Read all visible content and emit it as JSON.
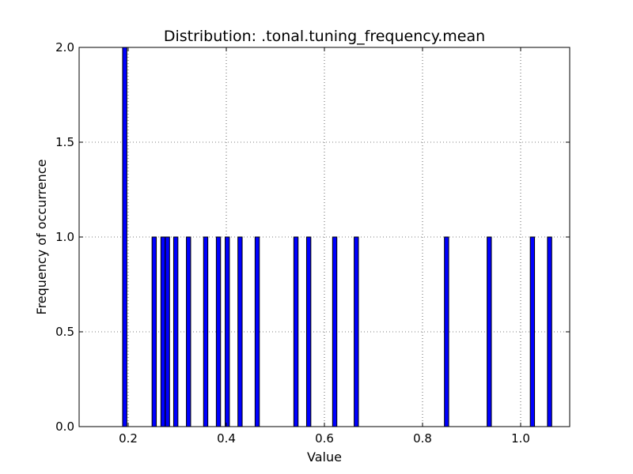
{
  "chart_data": {
    "type": "bar",
    "title": "Distribution: .tonal.tuning_frequency.mean",
    "xlabel": "Value",
    "ylabel": "Frequency of occurrence",
    "xlim": [
      0.1,
      1.1
    ],
    "ylim": [
      0.0,
      2.0
    ],
    "xticks": [
      0.2,
      0.4,
      0.6,
      0.8,
      1.0
    ],
    "xtick_labels": [
      "0.2",
      "0.4",
      "0.6",
      "0.8",
      "1.0"
    ],
    "yticks": [
      0.0,
      0.5,
      1.0,
      1.5,
      2.0
    ],
    "ytick_labels": [
      "0.0",
      "0.5",
      "1.0",
      "1.5",
      "2.0"
    ],
    "grid": true,
    "bar_width": 0.0087,
    "bar_color": "#0000ff",
    "bar_edge_color": "#000000",
    "bins": [
      {
        "x": 0.193,
        "count": 2
      },
      {
        "x": 0.253,
        "count": 1
      },
      {
        "x": 0.271,
        "count": 1
      },
      {
        "x": 0.28,
        "count": 1
      },
      {
        "x": 0.297,
        "count": 1
      },
      {
        "x": 0.323,
        "count": 1
      },
      {
        "x": 0.358,
        "count": 1
      },
      {
        "x": 0.384,
        "count": 1
      },
      {
        "x": 0.402,
        "count": 1
      },
      {
        "x": 0.428,
        "count": 1
      },
      {
        "x": 0.463,
        "count": 1
      },
      {
        "x": 0.542,
        "count": 1
      },
      {
        "x": 0.568,
        "count": 1
      },
      {
        "x": 0.621,
        "count": 1
      },
      {
        "x": 0.665,
        "count": 1
      },
      {
        "x": 0.849,
        "count": 1
      },
      {
        "x": 0.936,
        "count": 1
      },
      {
        "x": 1.024,
        "count": 1
      },
      {
        "x": 1.059,
        "count": 1
      }
    ]
  }
}
